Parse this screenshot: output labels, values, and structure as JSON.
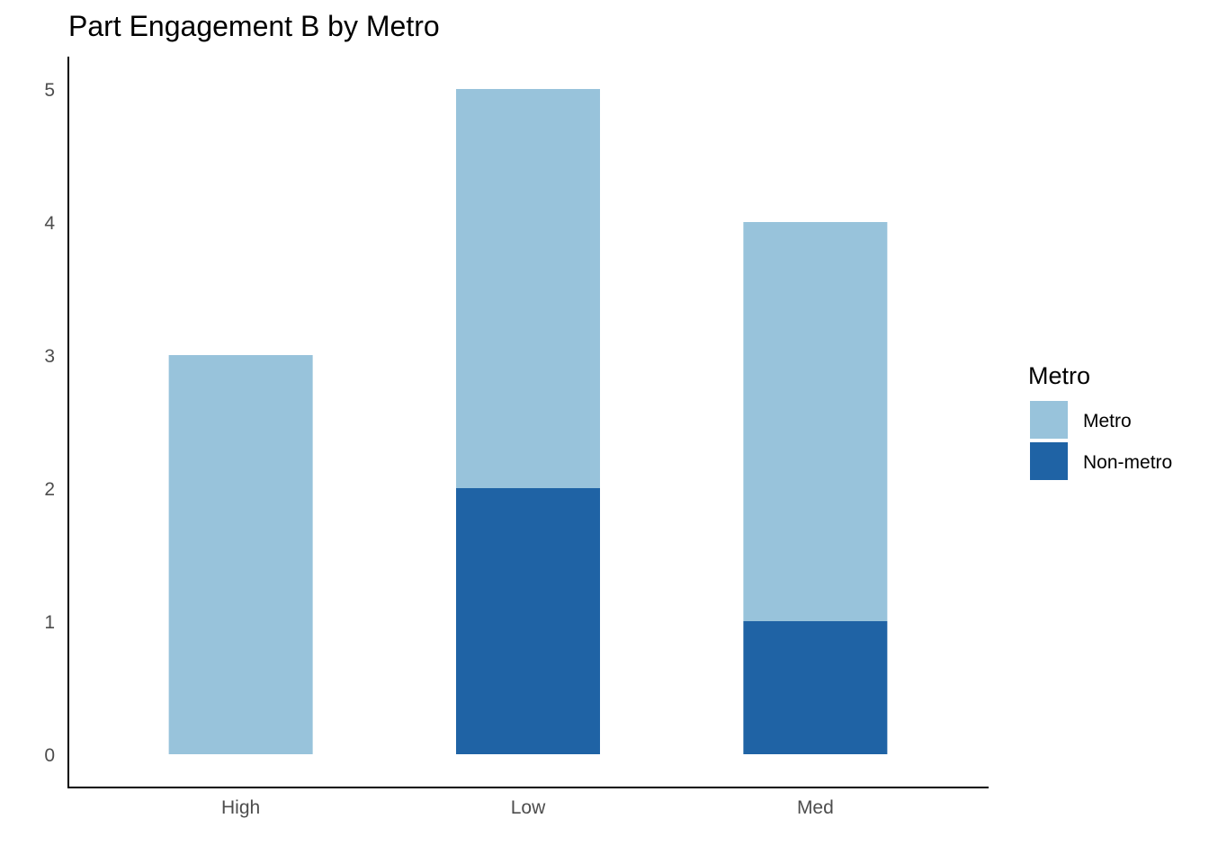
{
  "chart_data": {
    "type": "bar",
    "stacked": true,
    "title": "Part Engagement B by Metro",
    "xlabel": "",
    "ylabel": "",
    "categories": [
      "High",
      "Low",
      "Med"
    ],
    "series": [
      {
        "name": "Non-metro",
        "values": [
          0,
          2,
          1
        ],
        "color": "#1f63a5"
      },
      {
        "name": "Metro",
        "values": [
          3,
          3,
          3
        ],
        "color": "#98c3db"
      }
    ],
    "ylim": [
      0,
      5
    ],
    "yticks": [
      0,
      1,
      2,
      3,
      4,
      5
    ],
    "grid": false,
    "legend": {
      "title": "Metro",
      "position": "right",
      "entries": [
        "Metro",
        "Non-metro"
      ]
    }
  }
}
